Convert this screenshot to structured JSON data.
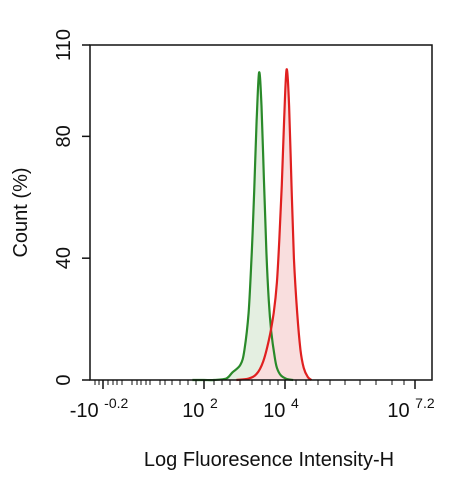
{
  "chart_data": {
    "type": "area",
    "title": "",
    "xlabel": "Log Fluoresence Intensity-H",
    "ylabel": "Count  (%)",
    "ylim": [
      0,
      110
    ],
    "y_ticks": [
      {
        "value": 0,
        "label": "0"
      },
      {
        "value": 40,
        "label": "40"
      },
      {
        "value": 80,
        "label": "80"
      },
      {
        "value": 110,
        "label": "110"
      }
    ],
    "x_scale": "biexponential",
    "x_ticks": [
      {
        "value": -0.2,
        "base": "-10",
        "exp": "-0.2"
      },
      {
        "value": 2,
        "base": "10",
        "exp": "2"
      },
      {
        "value": 4,
        "base": "10",
        "exp": "4"
      },
      {
        "value": 7.2,
        "base": "10",
        "exp": "7.2"
      }
    ],
    "legend": "none",
    "grid": false,
    "series": [
      {
        "color": "#2a8a2a",
        "fill": "#e4efe1",
        "points": [
          [
            1.7,
            0
          ],
          [
            2.0,
            0
          ],
          [
            2.25,
            0
          ],
          [
            2.55,
            0.5
          ],
          [
            2.7,
            2.5
          ],
          [
            2.9,
            5
          ],
          [
            3.0,
            10
          ],
          [
            3.1,
            22
          ],
          [
            3.18,
            42
          ],
          [
            3.24,
            62
          ],
          [
            3.3,
            85
          ],
          [
            3.36,
            101
          ],
          [
            3.42,
            90
          ],
          [
            3.48,
            66
          ],
          [
            3.54,
            42
          ],
          [
            3.6,
            26
          ],
          [
            3.66,
            16
          ],
          [
            3.74,
            8
          ],
          [
            3.8,
            4
          ],
          [
            3.9,
            1.5
          ],
          [
            4.05,
            0.3
          ],
          [
            4.2,
            0
          ]
        ]
      },
      {
        "color": "#e02020",
        "fill": "#f9dede",
        "points": [
          [
            2.8,
            0
          ],
          [
            3.1,
            0.5
          ],
          [
            3.3,
            2
          ],
          [
            3.46,
            6
          ],
          [
            3.6,
            13
          ],
          [
            3.72,
            22
          ],
          [
            3.8,
            32
          ],
          [
            3.86,
            46
          ],
          [
            3.92,
            64
          ],
          [
            3.98,
            86
          ],
          [
            4.04,
            102
          ],
          [
            4.1,
            90
          ],
          [
            4.16,
            64
          ],
          [
            4.22,
            40
          ],
          [
            4.3,
            22
          ],
          [
            4.38,
            10
          ],
          [
            4.46,
            4
          ],
          [
            4.56,
            1
          ],
          [
            4.65,
            0
          ]
        ]
      }
    ]
  }
}
